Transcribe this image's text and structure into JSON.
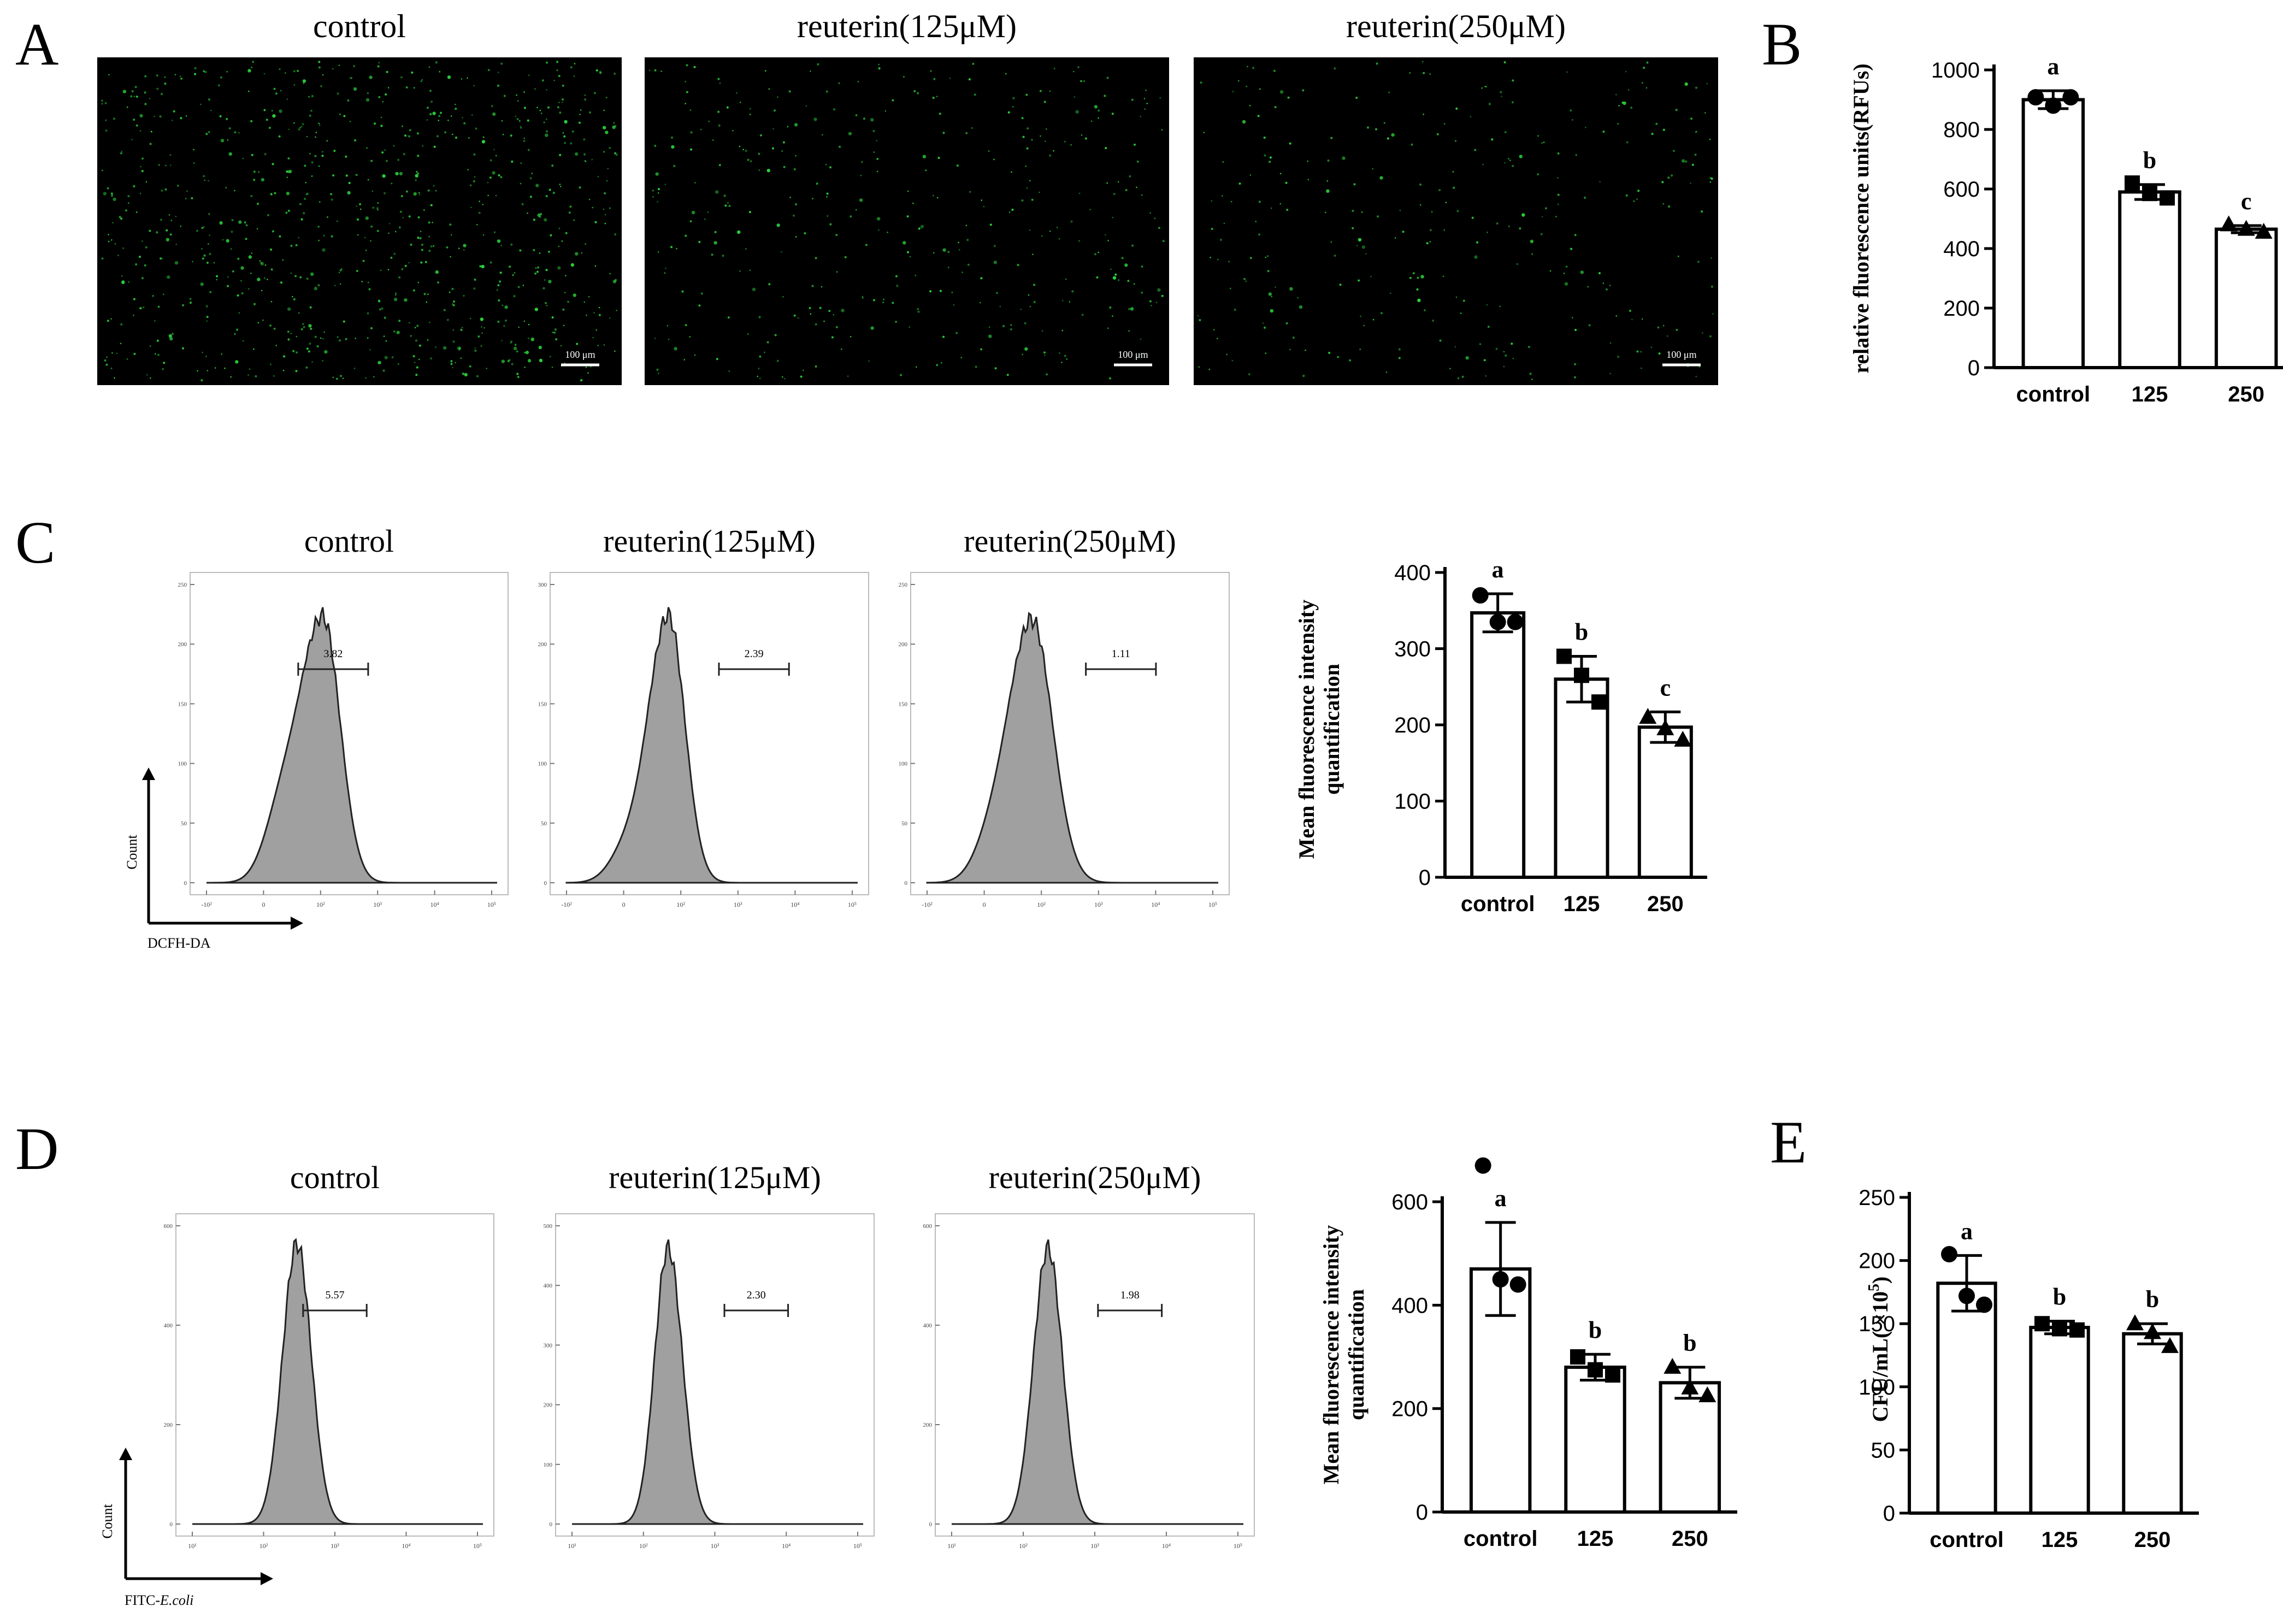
{
  "panel_letters": {
    "a": "A",
    "b": "B",
    "c": "C",
    "d": "D",
    "e": "E"
  },
  "micrographs": {
    "titles": [
      "control",
      "reuterin(125μM)",
      "reuterin(250μM)"
    ],
    "scale_bar": "100 μm",
    "dot_color": "#2bd23a",
    "background": "#000000",
    "relative_dot_density": [
      1.0,
      0.45,
      0.35
    ]
  },
  "flow": {
    "C": {
      "titles": [
        "control",
        "reuterin(125μM)",
        "reuterin(250μM)"
      ],
      "gate_values": [
        "3.82",
        "2.39",
        "1.11"
      ],
      "y_ticks": [
        [
          "0",
          "50",
          "100",
          "150",
          "200",
          "250"
        ],
        [
          "0",
          "50",
          "100",
          "150",
          "200",
          "300"
        ],
        [
          "0",
          "50",
          "100",
          "150",
          "200",
          "250"
        ]
      ],
      "x_ticks": [
        "-10²",
        "0",
        "10²",
        "10³",
        "10⁴",
        "10⁵"
      ],
      "y_axis": "Count",
      "x_axis": "DCFH-DA"
    },
    "D": {
      "titles": [
        "control",
        "reuterin(125μM)",
        "reuterin(250μM)"
      ],
      "gate_values": [
        "5.57",
        "2.30",
        "1.98"
      ],
      "y_ticks": [
        [
          "0",
          "200",
          "400",
          "600"
        ],
        [
          "0",
          "100",
          "200",
          "300",
          "400",
          "500"
        ],
        [
          "0",
          "200",
          "400",
          "600"
        ]
      ],
      "x_ticks": [
        "10¹",
        "10²",
        "10³",
        "10⁴",
        "10⁵"
      ],
      "y_axis": "Count",
      "x_axis_prefix": "FITC-",
      "x_axis_italic": "E.coli"
    },
    "fill_color": "#a0a0a0"
  },
  "chart_data": [
    {
      "panel": "B",
      "type": "bar",
      "categories": [
        "control",
        "125",
        "250"
      ],
      "values": [
        900,
        590,
        465
      ],
      "errors": [
        30,
        25,
        12
      ],
      "points": [
        [
          908,
          880,
          908
        ],
        [
          620,
          585,
          570
        ],
        [
          480,
          465,
          455
        ]
      ],
      "markers": [
        "circle",
        "square",
        "triangle"
      ],
      "letters": [
        "a",
        "b",
        "c"
      ],
      "ylabel": "relative fluorescence units(RFUs)",
      "ylim": [
        0,
        1000
      ],
      "yticks": [
        0,
        200,
        400,
        600,
        800,
        1000
      ]
    },
    {
      "panel": "C",
      "type": "bar",
      "categories": [
        "control",
        "125",
        "250"
      ],
      "values": [
        347,
        260,
        197
      ],
      "errors": [
        25,
        30,
        20
      ],
      "points": [
        [
          370,
          335,
          335
        ],
        [
          290,
          265,
          230
        ],
        [
          210,
          195,
          180
        ]
      ],
      "markers": [
        "circle",
        "square",
        "triangle"
      ],
      "letters": [
        "a",
        "b",
        "c"
      ],
      "ylabel_lines": [
        "Mean fluorescence intensity",
        "quantification"
      ],
      "ylim": [
        0,
        400
      ],
      "yticks": [
        0,
        100,
        200,
        300,
        400
      ]
    },
    {
      "panel": "D",
      "type": "bar",
      "categories": [
        "control",
        "125",
        "250"
      ],
      "values": [
        470,
        280,
        250
      ],
      "errors": [
        90,
        25,
        30
      ],
      "points": [
        [
          670,
          450,
          440
        ],
        [
          300,
          275,
          265
        ],
        [
          280,
          240,
          225
        ]
      ],
      "markers": [
        "circle",
        "square",
        "triangle"
      ],
      "letters": [
        "a",
        "b",
        "b"
      ],
      "ylabel_lines": [
        "Mean fluorescence intensity",
        "quantification"
      ],
      "ylim": [
        0,
        600
      ],
      "yticks": [
        0,
        200,
        400,
        600
      ]
    },
    {
      "panel": "E",
      "type": "bar",
      "categories": [
        "control",
        "125",
        "250"
      ],
      "values": [
        182,
        147,
        142
      ],
      "errors": [
        22,
        5,
        8
      ],
      "points": [
        [
          205,
          172,
          165
        ],
        [
          150,
          146,
          145
        ],
        [
          150,
          143,
          132
        ]
      ],
      "markers": [
        "circle",
        "square",
        "triangle"
      ],
      "letters": [
        "a",
        "b",
        "b"
      ],
      "ylabel_prefix": "CFU/mL( ×10",
      "ylabel_sup": "5",
      "ylabel_suffix": ")",
      "ylim": [
        0,
        250
      ],
      "yticks": [
        0,
        50,
        100,
        150,
        200,
        250
      ]
    }
  ]
}
